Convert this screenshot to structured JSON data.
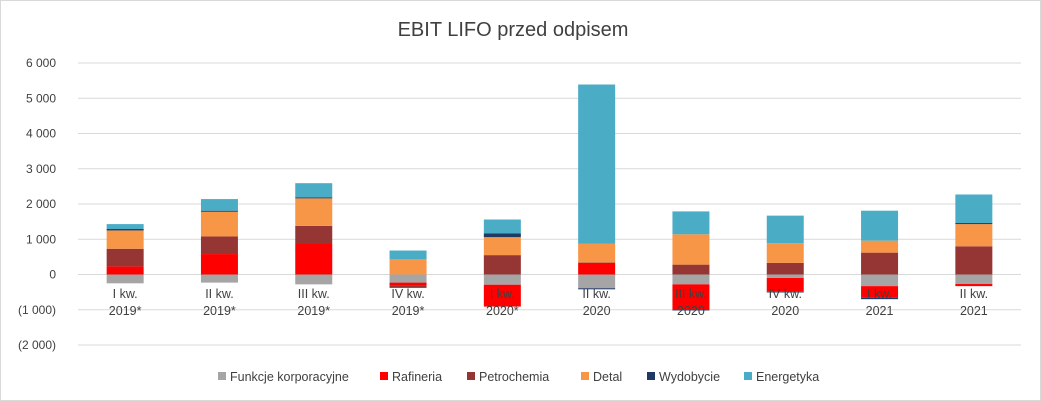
{
  "chart_data": {
    "type": "bar",
    "stacked": true,
    "title": "EBIT LIFO przed odpisem",
    "xlabel": "",
    "ylabel": "",
    "ylim": [
      -2000,
      6000
    ],
    "yticks": [
      6000,
      5000,
      4000,
      3000,
      2000,
      1000,
      0,
      -1000,
      -2000
    ],
    "ytick_labels": [
      "6 000",
      "5 000",
      "4 000",
      "3 000",
      "2 000",
      "1 000",
      "0",
      "(1 000)",
      "(2 000)"
    ],
    "grid": true,
    "legend_position": "bottom",
    "categories": [
      [
        "I kw.",
        "2019*"
      ],
      [
        "II kw.",
        "2019*"
      ],
      [
        "III kw.",
        "2019*"
      ],
      [
        "IV kw.",
        "2019*"
      ],
      [
        "I kw.",
        "2020*"
      ],
      [
        "II kw.",
        "2020"
      ],
      [
        "III kw.",
        "2020"
      ],
      [
        "IV kw.",
        "2020"
      ],
      [
        "I kw.",
        "2021"
      ],
      [
        "II kw.",
        "2021"
      ]
    ],
    "series": [
      {
        "name": "Funkcje korporacyjne",
        "color": "#a5a5a5",
        "values": [
          -250,
          -230,
          -280,
          -230,
          -290,
          -390,
          -280,
          -100,
          -330,
          -270
        ]
      },
      {
        "name": "Rafineria",
        "color": "#ff0000",
        "values": [
          230,
          580,
          880,
          -80,
          -620,
          330,
          -710,
          -390,
          -330,
          -60
        ]
      },
      {
        "name": "Petrochemia",
        "color": "#963634",
        "values": [
          500,
          500,
          500,
          -50,
          550,
          10,
          280,
          330,
          620,
          800
        ]
      },
      {
        "name": "Detal",
        "color": "#f79646",
        "values": [
          520,
          700,
          780,
          440,
          510,
          530,
          860,
          560,
          340,
          630
        ]
      },
      {
        "name": "Wydobycie",
        "color": "#1f3864",
        "values": [
          40,
          30,
          30,
          -20,
          110,
          -30,
          -30,
          -20,
          -40,
          30
        ]
      },
      {
        "name": "Energetyka",
        "color": "#4bacc6",
        "values": [
          140,
          330,
          400,
          240,
          390,
          4520,
          650,
          780,
          850,
          810
        ]
      }
    ]
  }
}
